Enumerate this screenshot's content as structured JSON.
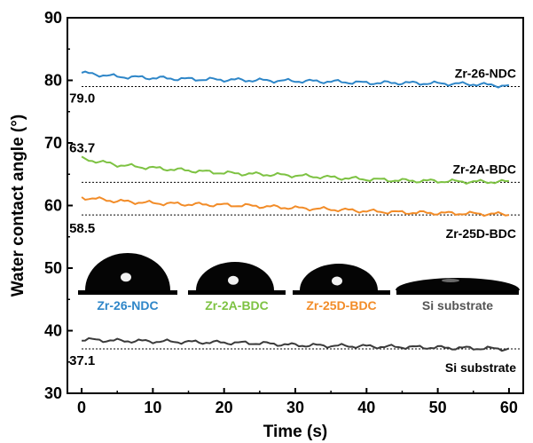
{
  "chart_data": {
    "type": "line",
    "title": "",
    "xlabel": "Time (s)",
    "ylabel": "Water contact angle (°)",
    "xlim": [
      -2,
      62
    ],
    "ylim": [
      30,
      90
    ],
    "xticks": [
      "0",
      "10",
      "20",
      "30",
      "40",
      "50",
      "60"
    ],
    "yticks": [
      "30",
      "40",
      "50",
      "60",
      "70",
      "80",
      "90"
    ],
    "grid": false,
    "legend": "labels placed at right end of each series",
    "series": [
      {
        "name": "Zr-26-NDC",
        "color": "#2e86c8",
        "x": [
          0,
          5,
          10,
          15,
          20,
          25,
          30,
          35,
          40,
          45,
          50,
          55,
          60
        ],
        "y": [
          81.2,
          80.6,
          80.4,
          80.2,
          80.1,
          80.0,
          79.9,
          79.8,
          79.6,
          79.6,
          79.5,
          79.4,
          79.1
        ],
        "reference_value": 79.0,
        "reference_label": "79.0"
      },
      {
        "name": "Zr-2A-BDC",
        "color": "#7dc242",
        "x": [
          0,
          5,
          10,
          15,
          20,
          25,
          30,
          35,
          40,
          45,
          50,
          55,
          60
        ],
        "y": [
          67.5,
          66.5,
          66.0,
          65.6,
          65.2,
          65.0,
          64.8,
          64.5,
          64.2,
          64.0,
          63.9,
          63.8,
          63.8
        ],
        "reference_value": 63.7,
        "reference_label": "63.7"
      },
      {
        "name": "Zr-25D-BDC",
        "color": "#f28c28",
        "x": [
          0,
          5,
          10,
          15,
          20,
          25,
          30,
          35,
          40,
          45,
          50,
          55,
          60
        ],
        "y": [
          61.3,
          60.7,
          60.4,
          60.2,
          60.1,
          59.9,
          59.6,
          59.4,
          59.1,
          58.9,
          58.8,
          58.7,
          58.6
        ],
        "reference_value": 58.5,
        "reference_label": "58.5"
      },
      {
        "name": "Si substrate",
        "color": "#3a3a3a",
        "x": [
          0,
          5,
          10,
          15,
          20,
          25,
          30,
          35,
          40,
          45,
          50,
          55,
          60
        ],
        "y": [
          38.6,
          38.4,
          38.3,
          38.2,
          38.1,
          38.0,
          37.7,
          37.6,
          37.5,
          37.4,
          37.3,
          37.2,
          37.1
        ],
        "reference_value": 37.1,
        "reference_label": "37.1"
      }
    ],
    "insets": [
      {
        "label": "Zr-26-NDC",
        "color": "#2e86c8",
        "shape": "tall-droplet"
      },
      {
        "label": "Zr-2A-BDC",
        "color": "#7dc242",
        "shape": "medium-droplet"
      },
      {
        "label": "Zr-25D-BDC",
        "color": "#f28c28",
        "shape": "medium-droplet"
      },
      {
        "label": "Si substrate",
        "color": "#555555",
        "shape": "flat-droplet"
      }
    ]
  }
}
